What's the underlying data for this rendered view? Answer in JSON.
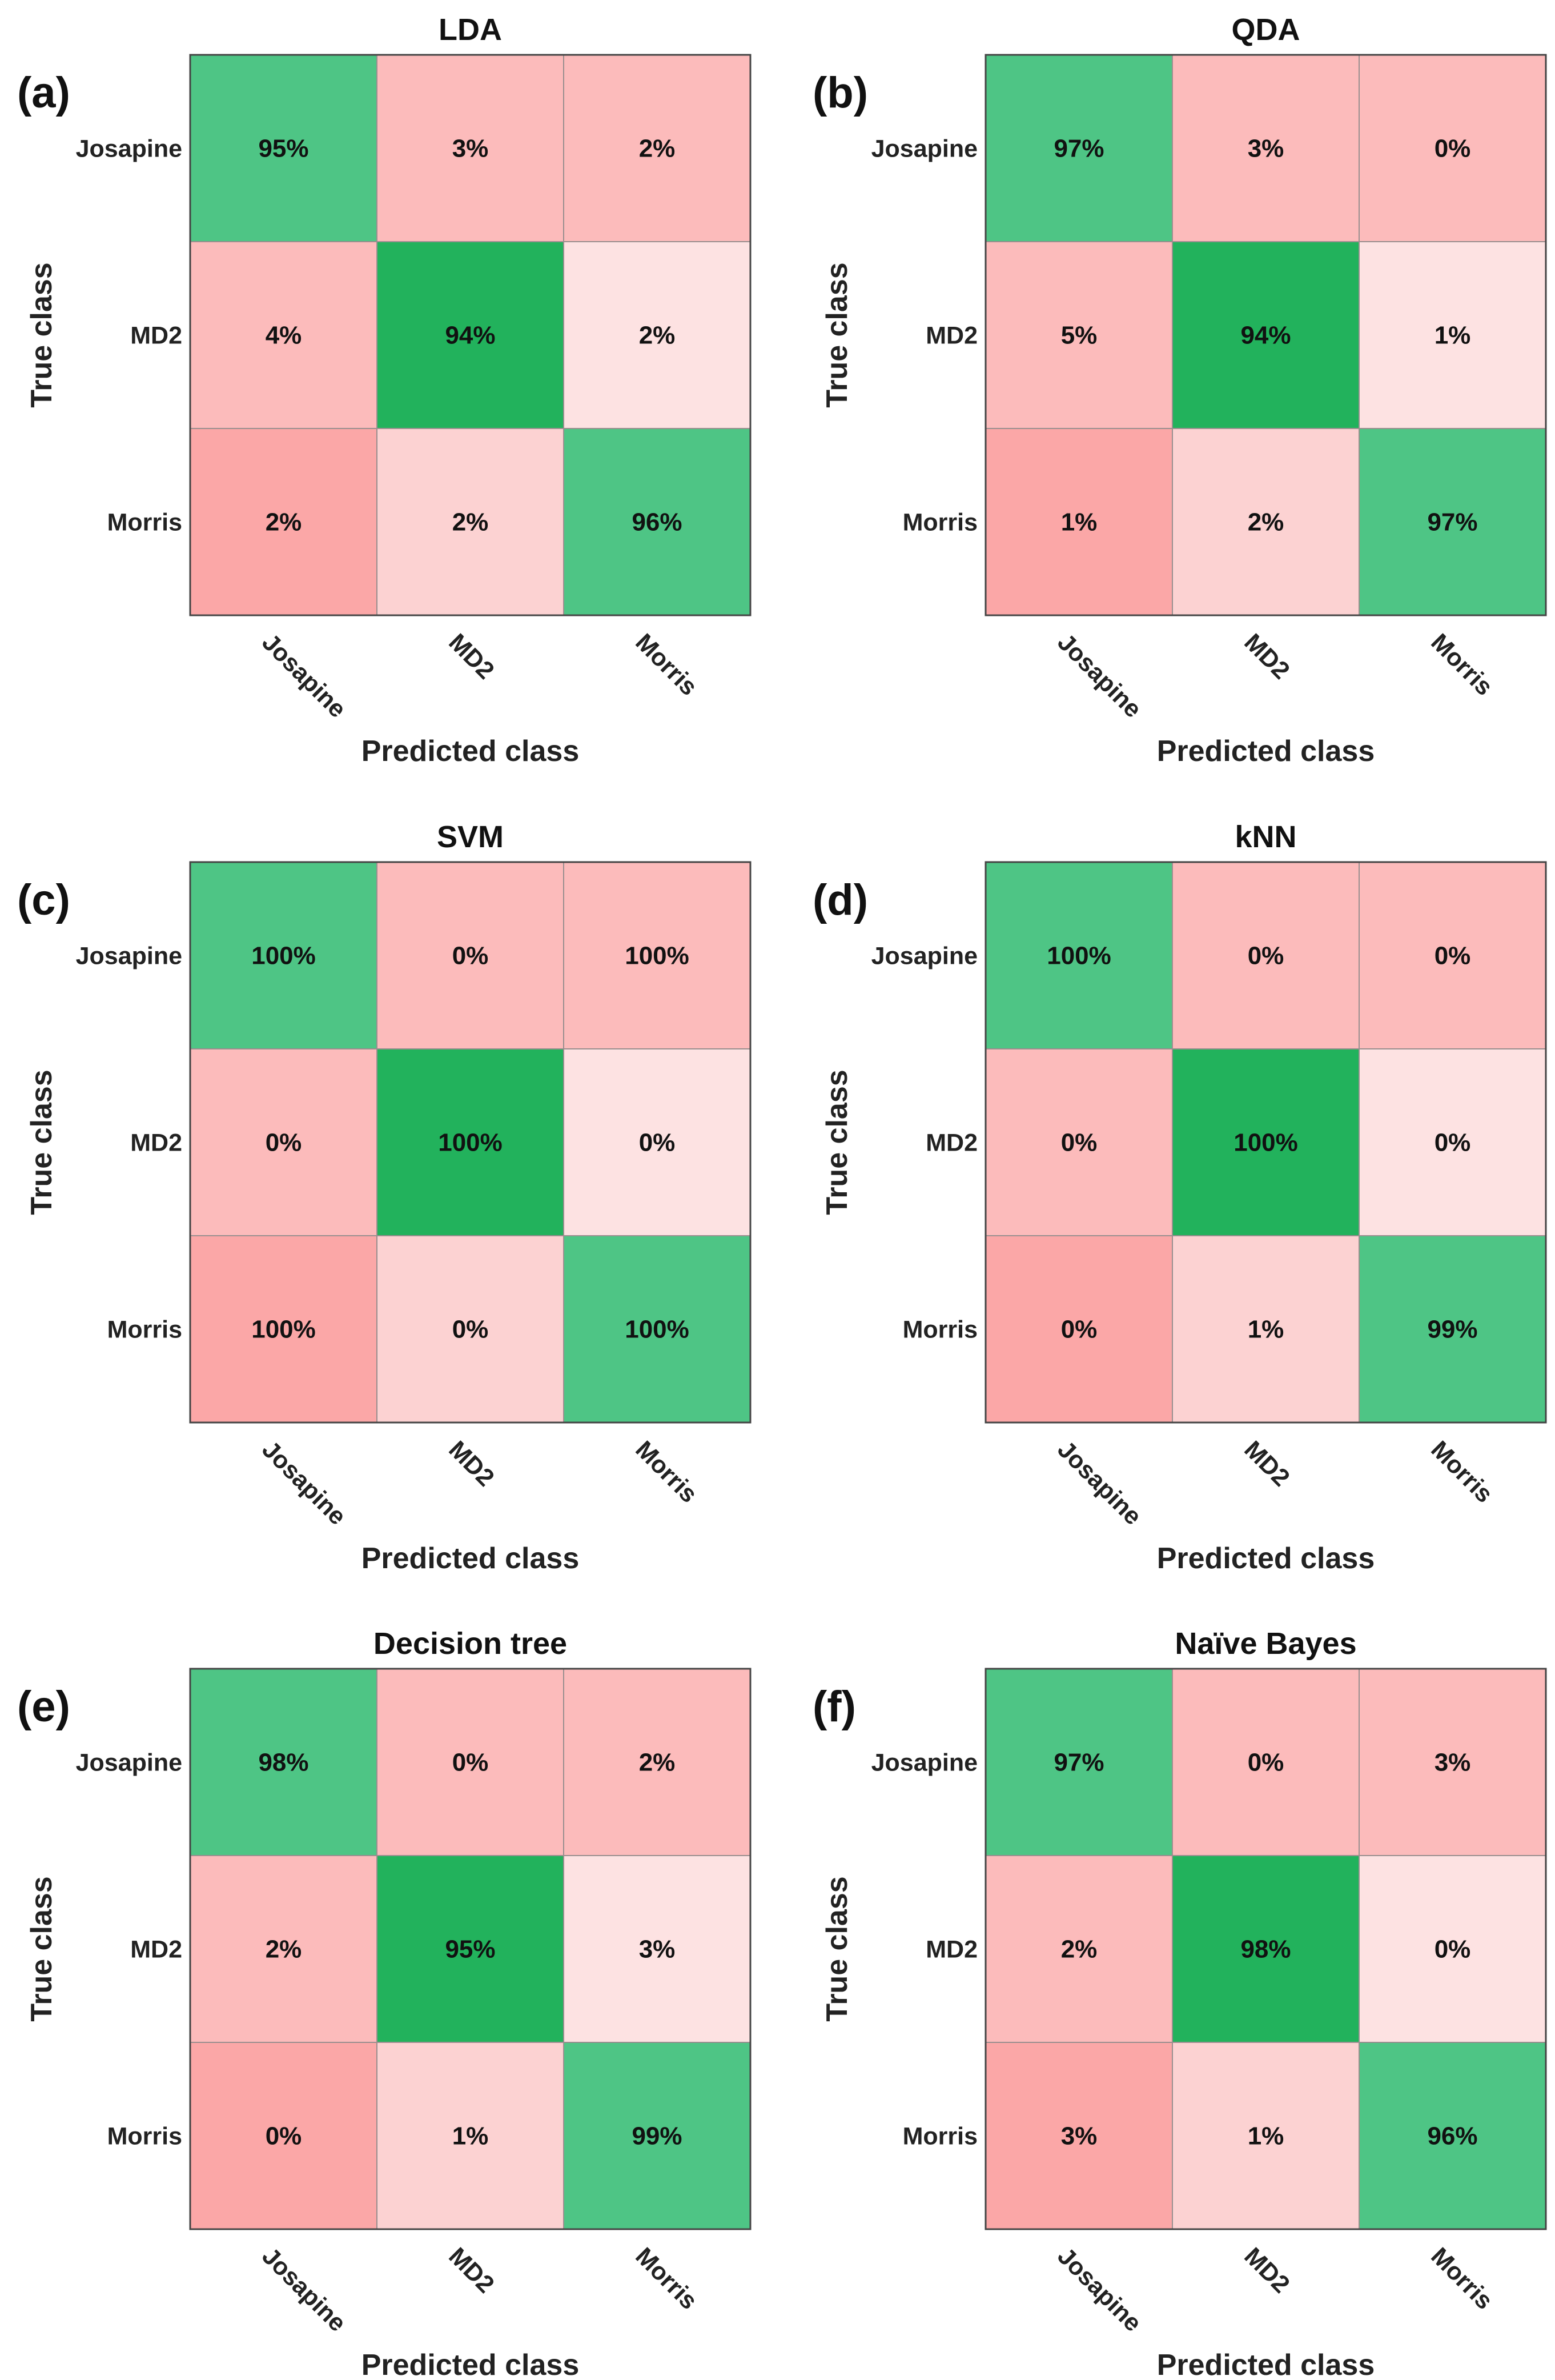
{
  "figure": {
    "description_id": "confusion-matrices"
  },
  "colors": {
    "diag_dark": "#22b25c",
    "diag_light": "#4ec585",
    "off_light": "#fde2e2",
    "off_mid": "#fcd2d2",
    "off_medium": "#fcbbbb",
    "off_strong": "#fba7a7"
  },
  "chart_data": [
    {
      "type": "heatmap",
      "panel": "(a)",
      "title": "LDA",
      "xlabel": "Predicted class",
      "ylabel": "True class",
      "classes": [
        "Josapine",
        "MD2",
        "Morris"
      ],
      "values": [
        [
          95,
          3,
          2
        ],
        [
          4,
          94,
          2
        ],
        [
          2,
          2,
          96
        ]
      ],
      "labels": [
        [
          "95%",
          "3%",
          "2%"
        ],
        [
          "4%",
          "94%",
          "2%"
        ],
        [
          "2%",
          "2%",
          "96%"
        ]
      ],
      "shade": [
        [
          "diag_light",
          "off_medium",
          "off_medium"
        ],
        [
          "off_medium",
          "diag_dark",
          "off_light"
        ],
        [
          "off_strong",
          "off_mid",
          "diag_light"
        ]
      ]
    },
    {
      "type": "heatmap",
      "panel": "(b)",
      "title": "QDA",
      "xlabel": "Predicted class",
      "ylabel": "True class",
      "classes": [
        "Josapine",
        "MD2",
        "Morris"
      ],
      "values": [
        [
          97,
          3,
          0
        ],
        [
          5,
          94,
          1
        ],
        [
          1,
          2,
          97
        ]
      ],
      "labels": [
        [
          "97%",
          "3%",
          "0%"
        ],
        [
          "5%",
          "94%",
          "1%"
        ],
        [
          "1%",
          "2%",
          "97%"
        ]
      ],
      "shade": [
        [
          "diag_light",
          "off_medium",
          "off_medium"
        ],
        [
          "off_medium",
          "diag_dark",
          "off_light"
        ],
        [
          "off_strong",
          "off_mid",
          "diag_light"
        ]
      ]
    },
    {
      "type": "heatmap",
      "panel": "(c)",
      "title": "SVM",
      "xlabel": "Predicted class",
      "ylabel": "True class",
      "classes": [
        "Josapine",
        "MD2",
        "Morris"
      ],
      "values": [
        [
          100,
          0,
          100
        ],
        [
          0,
          100,
          0
        ],
        [
          100,
          0,
          100
        ]
      ],
      "labels": [
        [
          "100%",
          "0%",
          "100%"
        ],
        [
          "0%",
          "100%",
          "0%"
        ],
        [
          "100%",
          "0%",
          "100%"
        ]
      ],
      "shade": [
        [
          "diag_light",
          "off_medium",
          "off_medium"
        ],
        [
          "off_medium",
          "diag_dark",
          "off_light"
        ],
        [
          "off_strong",
          "off_mid",
          "diag_light"
        ]
      ]
    },
    {
      "type": "heatmap",
      "panel": "(d)",
      "title": "kNN",
      "xlabel": "Predicted class",
      "ylabel": "True class",
      "classes": [
        "Josapine",
        "MD2",
        "Morris"
      ],
      "values": [
        [
          100,
          0,
          0
        ],
        [
          0,
          100,
          0
        ],
        [
          0,
          1,
          99
        ]
      ],
      "labels": [
        [
          "100%",
          "0%",
          "0%"
        ],
        [
          "0%",
          "100%",
          "0%"
        ],
        [
          "0%",
          "1%",
          "99%"
        ]
      ],
      "shade": [
        [
          "diag_light",
          "off_medium",
          "off_medium"
        ],
        [
          "off_medium",
          "diag_dark",
          "off_light"
        ],
        [
          "off_strong",
          "off_mid",
          "diag_light"
        ]
      ]
    },
    {
      "type": "heatmap",
      "panel": "(e)",
      "title": "Decision tree",
      "xlabel": "Predicted class",
      "ylabel": "True class",
      "classes": [
        "Josapine",
        "MD2",
        "Morris"
      ],
      "values": [
        [
          98,
          0,
          2
        ],
        [
          2,
          95,
          3
        ],
        [
          0,
          1,
          99
        ]
      ],
      "labels": [
        [
          "98%",
          "0%",
          "2%"
        ],
        [
          "2%",
          "95%",
          "3%"
        ],
        [
          "0%",
          "1%",
          "99%"
        ]
      ],
      "shade": [
        [
          "diag_light",
          "off_medium",
          "off_medium"
        ],
        [
          "off_medium",
          "diag_dark",
          "off_light"
        ],
        [
          "off_strong",
          "off_mid",
          "diag_light"
        ]
      ]
    },
    {
      "type": "heatmap",
      "panel": "(f)",
      "title": "Naïve Bayes",
      "xlabel": "Predicted class",
      "ylabel": "True class",
      "classes": [
        "Josapine",
        "MD2",
        "Morris"
      ],
      "values": [
        [
          97,
          0,
          3
        ],
        [
          2,
          98,
          0
        ],
        [
          3,
          1,
          96
        ]
      ],
      "labels": [
        [
          "97%",
          "0%",
          "3%"
        ],
        [
          "2%",
          "98%",
          "0%"
        ],
        [
          "3%",
          "1%",
          "96%"
        ]
      ],
      "shade": [
        [
          "diag_light",
          "off_medium",
          "off_medium"
        ],
        [
          "off_medium",
          "diag_dark",
          "off_light"
        ],
        [
          "off_strong",
          "off_mid",
          "diag_light"
        ]
      ]
    }
  ]
}
